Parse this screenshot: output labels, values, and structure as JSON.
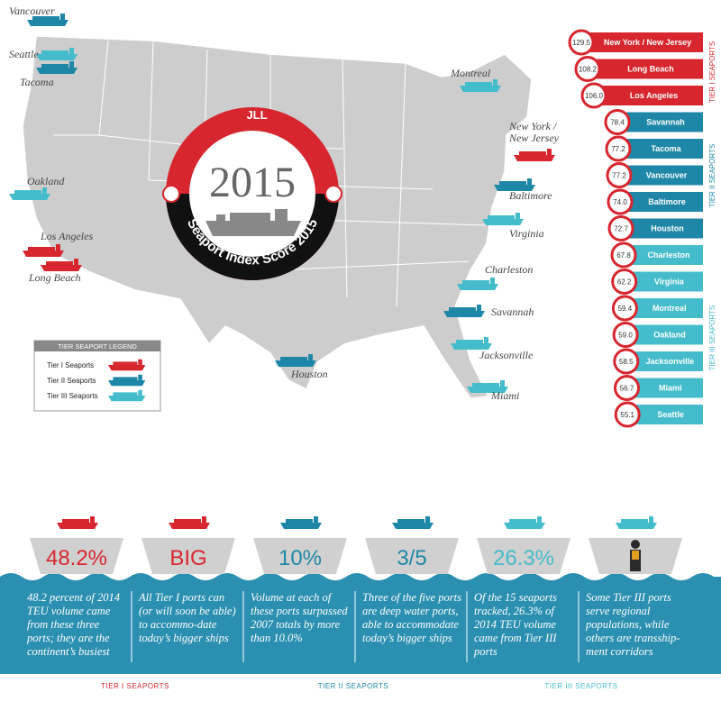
{
  "map": {
    "brand": "JLL",
    "year": "2015",
    "ring_text": "Seaport Index Score 2015",
    "cities": [
      {
        "name": "Vancouver",
        "tier": 2
      },
      {
        "name": "Seattle",
        "tier": 3
      },
      {
        "name": "Tacoma",
        "tier": 2
      },
      {
        "name": "Montreal",
        "tier": 3
      },
      {
        "name": "New York / New Jersey",
        "tier": 1
      },
      {
        "name": "Oakland",
        "tier": 3
      },
      {
        "name": "Baltimore",
        "tier": 2
      },
      {
        "name": "Virginia",
        "tier": 3
      },
      {
        "name": "Los Angeles",
        "tier": 1
      },
      {
        "name": "Long Beach",
        "tier": 1
      },
      {
        "name": "Charleston",
        "tier": 3
      },
      {
        "name": "Savannah",
        "tier": 2
      },
      {
        "name": "Houston",
        "tier": 2
      },
      {
        "name": "Jacksonville",
        "tier": 3
      },
      {
        "name": "Miami",
        "tier": 3
      }
    ]
  },
  "legend": {
    "title": "TIER SEAPORT LEGEND",
    "items": [
      {
        "label": "Tier I Seaports",
        "tier": 1
      },
      {
        "label": "Tier II Seaports",
        "tier": 2
      },
      {
        "label": "Tier III Seaports",
        "tier": 3
      }
    ]
  },
  "ranking": {
    "tier_labels": [
      "TIER I SEAPORTS",
      "TIER II SEAPORTS",
      "TIER III SEAPORTS"
    ],
    "ports": [
      {
        "name": "New York / New Jersey",
        "score": "129.5",
        "tier": 1
      },
      {
        "name": "Long Beach",
        "score": "108.2",
        "tier": 1
      },
      {
        "name": "Los Angeles",
        "score": "106.0",
        "tier": 1
      },
      {
        "name": "Savannah",
        "score": "78.4",
        "tier": 2
      },
      {
        "name": "Tacoma",
        "score": "77.2",
        "tier": 2
      },
      {
        "name": "Vancouver",
        "score": "77.2",
        "tier": 2
      },
      {
        "name": "Baltimore",
        "score": "74.0",
        "tier": 2
      },
      {
        "name": "Houston",
        "score": "72.7",
        "tier": 2
      },
      {
        "name": "Charleston",
        "score": "67.8",
        "tier": 3
      },
      {
        "name": "Virginia",
        "score": "62.2",
        "tier": 3
      },
      {
        "name": "Montreal",
        "score": "59.4",
        "tier": 3
      },
      {
        "name": "Oakland",
        "score": "59.0",
        "tier": 3
      },
      {
        "name": "Jacksonville",
        "score": "58.5",
        "tier": 3
      },
      {
        "name": "Miami",
        "score": "56.7",
        "tier": 3
      },
      {
        "name": "Seattle",
        "score": "55.1",
        "tier": 3
      }
    ]
  },
  "stats": [
    {
      "headline": "48.2%",
      "text": "48.2 percent of 2014 TEU volume came from these three ports; they are the continent’s busiest",
      "tier": 1
    },
    {
      "headline": "BIG",
      "text": "All Tier I ports can (or will soon be able) to accommo-date today’s bigger ships",
      "tier": 1
    },
    {
      "headline": "10%",
      "text": "Volume at each of these ports surpassed 2007 totals by more than 10.0%",
      "tier": 2
    },
    {
      "headline": "3/5",
      "text": "Three of the five ports are deep water ports, able to accommodate today’s bigger ships",
      "tier": 2
    },
    {
      "headline": "26.3%",
      "text": "Of the 15 seaports tracked, 26.3% of 2014 TEU volume came from Tier III ports",
      "tier": 3
    },
    {
      "text": "Some Tier III ports serve regional populations, while others are transship-ment corridors",
      "tier": 3
    }
  ],
  "footer": [
    "TIER I SEAPORTS",
    "TIER II SEAPORTS",
    "TIER III SEAPORTS"
  ]
}
